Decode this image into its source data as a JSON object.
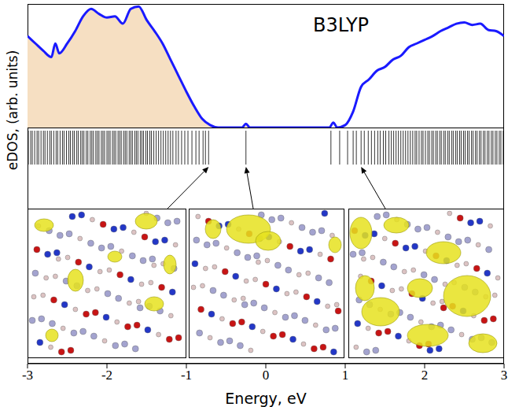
{
  "chart_data": {
    "type": "line",
    "title": "B3LYP",
    "xlabel": "Energy, eV",
    "ylabel": "eDOS, (arb. units)",
    "x": [
      -3,
      -2.9,
      -2.8,
      -2.7,
      -2.65,
      -2.6,
      -2.5,
      -2.4,
      -2.3,
      -2.2,
      -2.1,
      -2,
      -1.9,
      -1.8,
      -1.7,
      -1.6,
      -1.5,
      -1.4,
      -1.3,
      -1.2,
      -1.1,
      -1,
      -0.9,
      -0.8,
      -0.7,
      -0.6,
      -0.5,
      -0.4,
      -0.3,
      -0.25,
      -0.2,
      -0.1,
      0,
      0.1,
      0.2,
      0.3,
      0.4,
      0.5,
      0.6,
      0.7,
      0.8,
      0.85,
      0.9,
      1,
      1.1,
      1.2,
      1.3,
      1.4,
      1.5,
      1.6,
      1.7,
      1.8,
      1.9,
      2,
      2.1,
      2.2,
      2.3,
      2.4,
      2.5,
      2.6,
      2.7,
      2.8,
      2.9,
      3
    ],
    "values": [
      0.74,
      0.68,
      0.62,
      0.57,
      0.68,
      0.6,
      0.68,
      0.78,
      0.9,
      0.96,
      0.92,
      0.89,
      0.9,
      0.84,
      0.96,
      0.98,
      0.87,
      0.78,
      0.68,
      0.55,
      0.42,
      0.29,
      0.17,
      0.07,
      0.02,
      0,
      0,
      0,
      0,
      0.03,
      0,
      0,
      0,
      0,
      0,
      0,
      0,
      0,
      0,
      0,
      0,
      0.04,
      0,
      0.02,
      0.13,
      0.33,
      0.39,
      0.46,
      0.49,
      0.55,
      0.58,
      0.65,
      0.68,
      0.71,
      0.74,
      0.78,
      0.81,
      0.84,
      0.85,
      0.83,
      0.84,
      0.79,
      0.78,
      0.74
    ],
    "color": "#1a1aff",
    "occupied_up_to": -0.2,
    "eigenvalues": [
      -2.99,
      -2.96,
      -2.94,
      -2.91,
      -2.88,
      -2.86,
      -2.83,
      -2.8,
      -2.78,
      -2.75,
      -2.72,
      -2.7,
      -2.67,
      -2.64,
      -2.62,
      -2.59,
      -2.56,
      -2.54,
      -2.51,
      -2.48,
      -2.46,
      -2.43,
      -2.41,
      -2.38,
      -2.36,
      -2.33,
      -2.31,
      -2.29,
      -2.26,
      -2.24,
      -2.21,
      -2.19,
      -2.17,
      -2.14,
      -2.12,
      -2.1,
      -2.07,
      -2.05,
      -2.03,
      -2,
      -1.98,
      -1.96,
      -1.93,
      -1.91,
      -1.89,
      -1.86,
      -1.84,
      -1.82,
      -1.79,
      -1.77,
      -1.75,
      -1.72,
      -1.7,
      -1.68,
      -1.65,
      -1.63,
      -1.61,
      -1.58,
      -1.56,
      -1.54,
      -1.51,
      -1.49,
      -1.46,
      -1.44,
      -1.41,
      -1.38,
      -1.35,
      -1.32,
      -1.29,
      -1.26,
      -1.23,
      -1.2,
      -1.17,
      -1.13,
      -1.1,
      -1.06,
      -1.02,
      -0.98,
      -0.93,
      -0.88,
      -0.84,
      -0.79,
      -0.76,
      -0.72,
      -0.25,
      0.82,
      0.93,
      1.03,
      1.1,
      1.14,
      1.2,
      1.24,
      1.29,
      1.33,
      1.37,
      1.41,
      1.44,
      1.48,
      1.51,
      1.55,
      1.58,
      1.61,
      1.64,
      1.67,
      1.7,
      1.73,
      1.76,
      1.79,
      1.82,
      1.85,
      1.88,
      1.9,
      1.93,
      1.96,
      1.98,
      2.01,
      2.04,
      2.06,
      2.09,
      2.11,
      2.14,
      2.16,
      2.19,
      2.21,
      2.24,
      2.26,
      2.29,
      2.31,
      2.34,
      2.36,
      2.39,
      2.41,
      2.44,
      2.46,
      2.49,
      2.51,
      2.54,
      2.56,
      2.59,
      2.61,
      2.64,
      2.66,
      2.69,
      2.71,
      2.74,
      2.76,
      2.79,
      2.81,
      2.84,
      2.86,
      2.89,
      2.91,
      2.94,
      2.96,
      2.99
    ],
    "highlighted_states": [
      -0.72,
      -0.25,
      1.2
    ],
    "xlim": [
      -3,
      3
    ],
    "xticks": [
      -3,
      -2,
      -1,
      0,
      1,
      2,
      3
    ],
    "ylim": [
      0,
      1
    ],
    "tick_labels": "x"
  }
}
